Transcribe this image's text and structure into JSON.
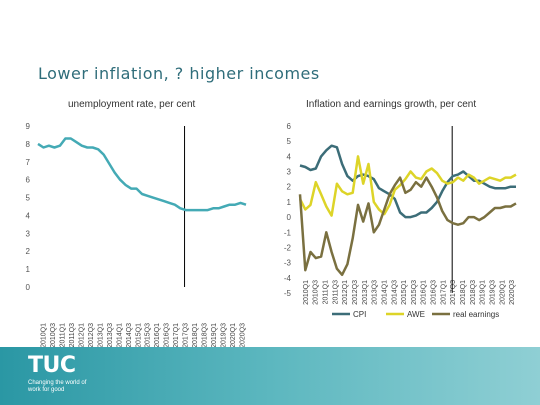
{
  "slide": {
    "title": "Lower inflation, ? higher incomes",
    "footer_logo": "TUC",
    "footer_tagline": "Changing the world of work for good"
  },
  "colors": {
    "footer": "#3aa2ad",
    "unemployment": "#44aab5",
    "cpi": "#3c6d78",
    "awe": "#ddd428",
    "real_earnings": "#7a7040",
    "title": "#2f6d7a"
  },
  "chart_data": [
    {
      "type": "line",
      "title": "unemployment rate, per cent",
      "ylim": [
        0,
        9
      ],
      "yticks": [
        "0",
        "1",
        "2",
        "3",
        "4",
        "5",
        "6",
        "7",
        "8",
        "9"
      ],
      "xtick_labels": [
        "2010Q1",
        "2010Q3",
        "2011Q1",
        "2011Q3",
        "2012Q1",
        "2012Q3",
        "2013Q1",
        "2013Q3",
        "2014Q1",
        "2014Q3",
        "2015Q1",
        "2015Q3",
        "2016Q1",
        "2016Q3",
        "2017Q1",
        "2017Q3",
        "2018Q1",
        "2018Q3",
        "2019Q1",
        "2019Q3",
        "2020Q1",
        "2020Q3"
      ],
      "grid": false,
      "vertical_marker_at": "2017Q3",
      "series": [
        {
          "values": [
            8.0,
            7.8,
            7.9,
            7.8,
            7.9,
            8.3,
            8.3,
            8.1,
            7.9,
            7.8,
            7.8,
            7.7,
            7.4,
            6.9,
            6.4,
            6.0,
            5.7,
            5.5,
            5.5,
            5.2,
            5.1,
            5.0,
            4.9,
            4.8,
            4.7,
            4.6,
            4.4,
            4.3,
            4.3,
            4.3,
            4.3,
            4.3,
            4.4,
            4.4,
            4.5,
            4.6,
            4.6,
            4.7,
            4.6
          ]
        }
      ]
    },
    {
      "type": "line",
      "title": "Inflation and earnings growth, per cent",
      "ylim": [
        -5,
        6
      ],
      "yticks": [
        "-5",
        "-4",
        "-3",
        "-2",
        "-1",
        "0",
        "1",
        "2",
        "3",
        "4",
        "5",
        "6"
      ],
      "xtick_labels": [
        "2010Q1",
        "2010Q3",
        "2011Q1",
        "2011Q3",
        "2012Q1",
        "2012Q3",
        "2013Q1",
        "2013Q3",
        "2014Q1",
        "2014Q3",
        "2015Q1",
        "2015Q3",
        "2016Q1",
        "2016Q3",
        "2017Q1",
        "2017Q3",
        "2018Q1",
        "2018Q3",
        "2019Q1",
        "2019Q3",
        "2020Q1",
        "2020Q3"
      ],
      "grid": false,
      "vertical_marker_at": "2017Q3",
      "legend_position": "bottom",
      "series": [
        {
          "name": "CPI",
          "values": [
            3.4,
            3.3,
            3.1,
            3.2,
            4.0,
            4.4,
            4.7,
            4.6,
            3.5,
            2.7,
            2.4,
            2.7,
            2.8,
            2.7,
            2.5,
            1.9,
            1.7,
            1.5,
            1.2,
            0.3,
            0.0,
            0.0,
            0.1,
            0.3,
            0.3,
            0.6,
            1.0,
            1.7,
            2.3,
            2.7,
            2.8,
            3.0,
            2.7,
            2.4,
            2.4,
            2.2,
            2.0,
            1.9,
            1.9,
            1.9,
            2.0,
            2.0
          ]
        },
        {
          "name": "AWE",
          "values": [
            1.2,
            0.5,
            0.8,
            2.3,
            1.5,
            0.7,
            0.1,
            2.2,
            1.7,
            1.5,
            1.6,
            4.0,
            2.2,
            3.5,
            1.0,
            0.5,
            0.2,
            0.8,
            1.8,
            2.1,
            2.5,
            3.0,
            2.6,
            2.5,
            3.0,
            3.2,
            2.9,
            2.4,
            2.2,
            2.3,
            2.6,
            2.4,
            2.8,
            2.6,
            2.2,
            2.4,
            2.6,
            2.5,
            2.4,
            2.6,
            2.6,
            2.8
          ]
        },
        {
          "name": "real earnings",
          "values": [
            1.5,
            -3.5,
            -2.3,
            -2.7,
            -2.6,
            -1.0,
            -2.3,
            -3.4,
            -3.8,
            -3.1,
            -1.4,
            0.8,
            -0.3,
            0.9,
            -1.0,
            -0.5,
            0.5,
            1.5,
            2.1,
            2.6,
            1.6,
            1.8,
            2.3,
            2.0,
            2.6,
            2.0,
            1.3,
            0.4,
            -0.2,
            -0.4,
            -0.5,
            -0.4,
            0.0,
            0.0,
            -0.2,
            0.0,
            0.3,
            0.6,
            0.6,
            0.7,
            0.7,
            0.9
          ]
        }
      ]
    }
  ]
}
